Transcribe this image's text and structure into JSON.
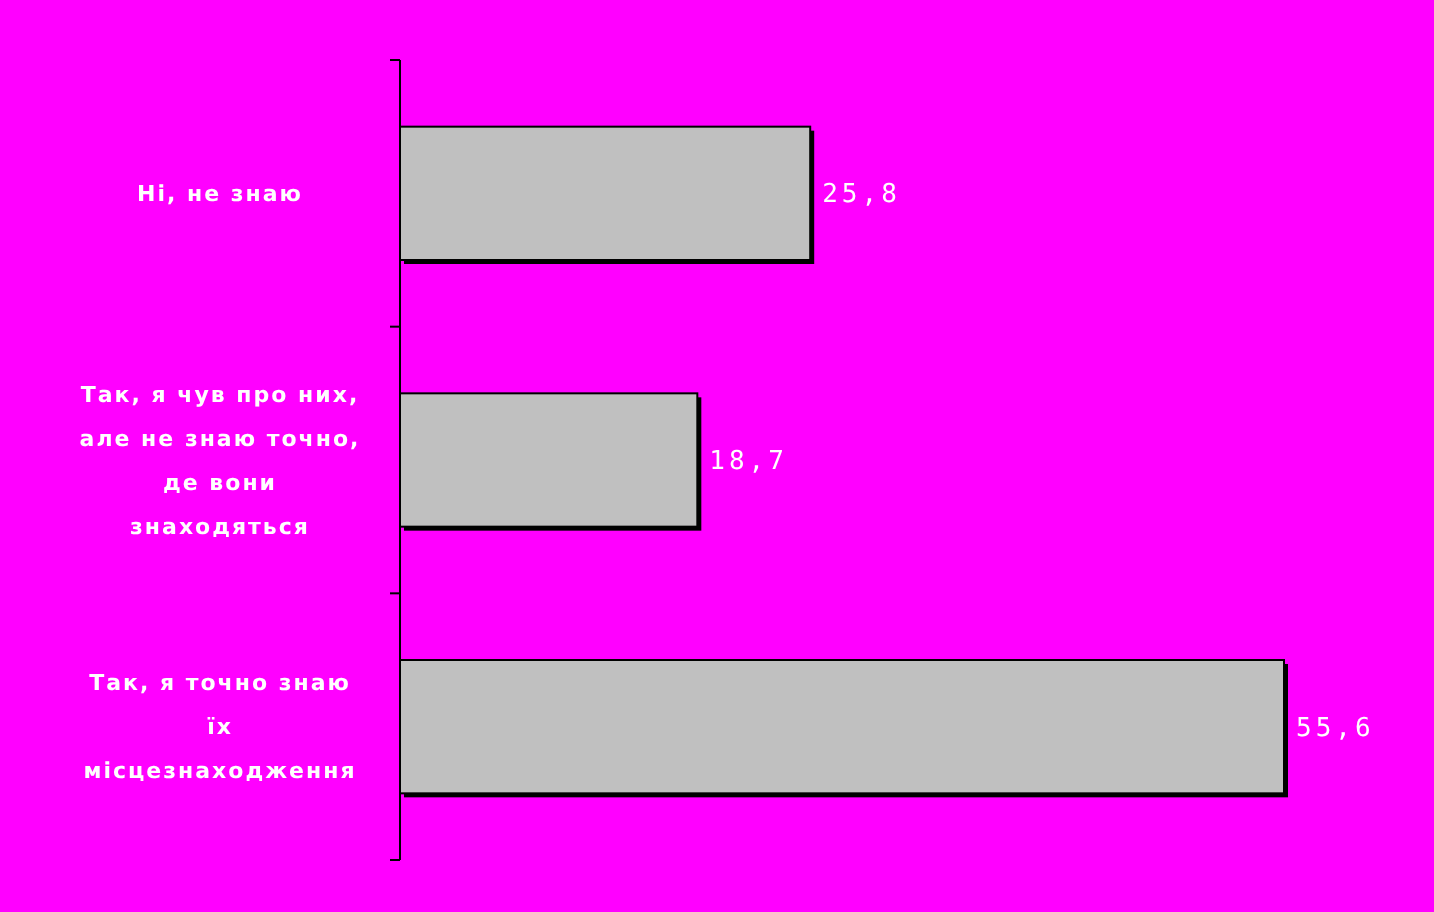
{
  "chart_data": {
    "type": "bar",
    "orientation": "horizontal",
    "categories": [
      "Ні, не знаю",
      "Так, я чув про них,\nале не знаю точно,\nде вони\nзнаходяться",
      "Так, я точно знаю\nїх\nмісцезнаходження"
    ],
    "values": [
      25.8,
      18.7,
      55.6
    ],
    "color": "#c0c0c0",
    "value_labels": [
      "25,8",
      "18,7",
      "55,6"
    ]
  }
}
